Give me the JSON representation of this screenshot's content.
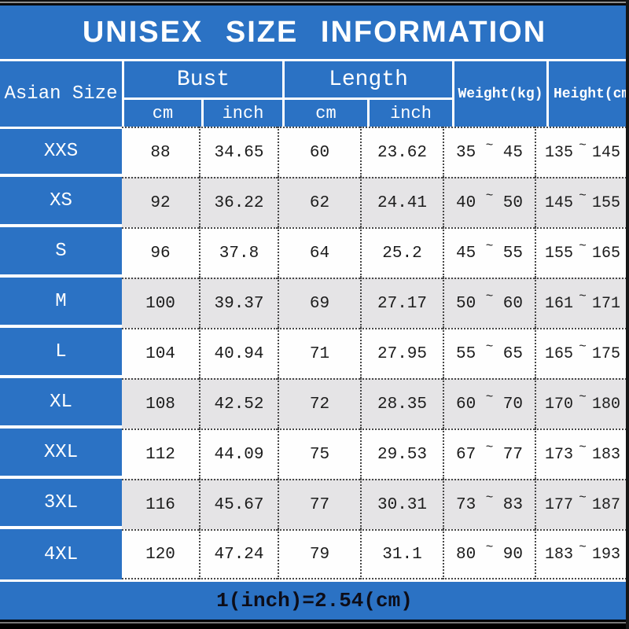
{
  "colors": {
    "blue": "#2b72c4",
    "row_stripe": "#e5e4e6",
    "header_text": "#ffffff",
    "data_text": "#1c1c1c",
    "footer_text": "#0d0d18"
  },
  "chart_data": {
    "type": "table",
    "title": "UNISEX SIZE INFORMATION",
    "header": {
      "size_col": "Asian Size",
      "groups": [
        {
          "label": "Bust",
          "subs": [
            "cm",
            "inch"
          ]
        },
        {
          "label": "Length",
          "subs": [
            "cm",
            "inch"
          ]
        }
      ],
      "weight_col": "Weight(kg)",
      "height_col": "Height(cm)"
    },
    "tilde": "~",
    "rows": [
      {
        "size": "XXS",
        "bust_cm": "88",
        "bust_inch": "34.65",
        "length_cm": "60",
        "length_inch": "23.62",
        "weight_min": "35",
        "weight_max": "45",
        "height_min": "135",
        "height_max": "145"
      },
      {
        "size": "XS",
        "bust_cm": "92",
        "bust_inch": "36.22",
        "length_cm": "62",
        "length_inch": "24.41",
        "weight_min": "40",
        "weight_max": "50",
        "height_min": "145",
        "height_max": "155"
      },
      {
        "size": "S",
        "bust_cm": "96",
        "bust_inch": "37.8",
        "length_cm": "64",
        "length_inch": "25.2",
        "weight_min": "45",
        "weight_max": "55",
        "height_min": "155",
        "height_max": "165"
      },
      {
        "size": "M",
        "bust_cm": "100",
        "bust_inch": "39.37",
        "length_cm": "69",
        "length_inch": "27.17",
        "weight_min": "50",
        "weight_max": "60",
        "height_min": "161",
        "height_max": "171"
      },
      {
        "size": "L",
        "bust_cm": "104",
        "bust_inch": "40.94",
        "length_cm": "71",
        "length_inch": "27.95",
        "weight_min": "55",
        "weight_max": "65",
        "height_min": "165",
        "height_max": "175"
      },
      {
        "size": "XL",
        "bust_cm": "108",
        "bust_inch": "42.52",
        "length_cm": "72",
        "length_inch": "28.35",
        "weight_min": "60",
        "weight_max": "70",
        "height_min": "170",
        "height_max": "180"
      },
      {
        "size": "XXL",
        "bust_cm": "112",
        "bust_inch": "44.09",
        "length_cm": "75",
        "length_inch": "29.53",
        "weight_min": "67",
        "weight_max": "77",
        "height_min": "173",
        "height_max": "183"
      },
      {
        "size": "3XL",
        "bust_cm": "116",
        "bust_inch": "45.67",
        "length_cm": "77",
        "length_inch": "30.31",
        "weight_min": "73",
        "weight_max": "83",
        "height_min": "177",
        "height_max": "187"
      },
      {
        "size": "4XL",
        "bust_cm": "120",
        "bust_inch": "47.24",
        "length_cm": "79",
        "length_inch": "31.1",
        "weight_min": "80",
        "weight_max": "90",
        "height_min": "183",
        "height_max": "193"
      }
    ],
    "footer_note": "1(inch)=2.54(cm)"
  }
}
